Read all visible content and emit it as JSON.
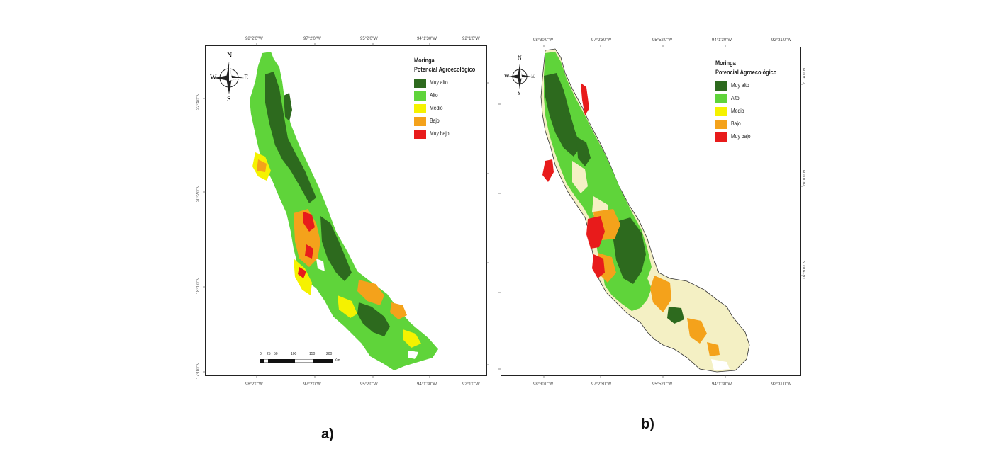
{
  "panels": [
    {
      "label": "a)",
      "legend": {
        "title_line1": "Moringa",
        "title_line2": "Potencial Agroecológico",
        "items": [
          {
            "label": "Muy alto",
            "color": "#2d6a1e"
          },
          {
            "label": "Alto",
            "color": "#5fd43a"
          },
          {
            "label": "Medio",
            "color": "#f5f200"
          },
          {
            "label": " Bajo",
            "color": "#f4a21b"
          },
          {
            "label": "Muy bajo",
            "color": "#e81b1b"
          }
        ]
      },
      "compass": {
        "n": "N",
        "s": "S",
        "e": "E",
        "w": "W"
      },
      "top_coords": [
        "98°2'0\"W",
        "97°2'0\"W",
        "95°2'0\"W",
        "94°1'30\"W",
        "92°1'0\"W"
      ],
      "bottom_coords": [
        "98°2'0\"W",
        "97°2'0\"W",
        "95°2'0\"W",
        "94°1'30\"W",
        "92°1'0\"W"
      ],
      "left_coords": [
        "22°4'0\"N",
        "20°2'0\"N",
        "18°1'0\"N",
        "17°0'0\"N"
      ],
      "scalebar": {
        "ticks": [
          "0",
          "25",
          "50",
          "100",
          "150",
          "200"
        ],
        "unit": "Km"
      }
    },
    {
      "label": "b)",
      "legend": {
        "title_line1": "Moringa",
        "title_line2": "Potencial Agroecológico",
        "items": [
          {
            "label": "Muy alto",
            "color": "#2d6a1e"
          },
          {
            "label": "Alto",
            "color": "#5fd43a"
          },
          {
            "label": "Medio",
            "color": "#f5f200"
          },
          {
            "label": " Bajo",
            "color": "#f4a21b"
          },
          {
            "label": "Muy bajo",
            "color": "#e81b1b"
          }
        ]
      },
      "compass": {
        "n": "N",
        "s": "S",
        "e": "E",
        "w": "W"
      },
      "top_coords": [
        "98°30'0\"W",
        "97°2'30\"W",
        "95°52'0\"W",
        "94°1'30\"W",
        "92°31'0\"W"
      ],
      "bottom_coords": [
        "98°30'0\"W",
        "97°2'30\"W",
        "95°52'0\"W",
        "94°1'30\"W",
        "92°31'0\"W"
      ],
      "right_coords": [
        "21°4'0\"N",
        "20°0'0\"N",
        "18°30'0\"N"
      ]
    }
  ]
}
